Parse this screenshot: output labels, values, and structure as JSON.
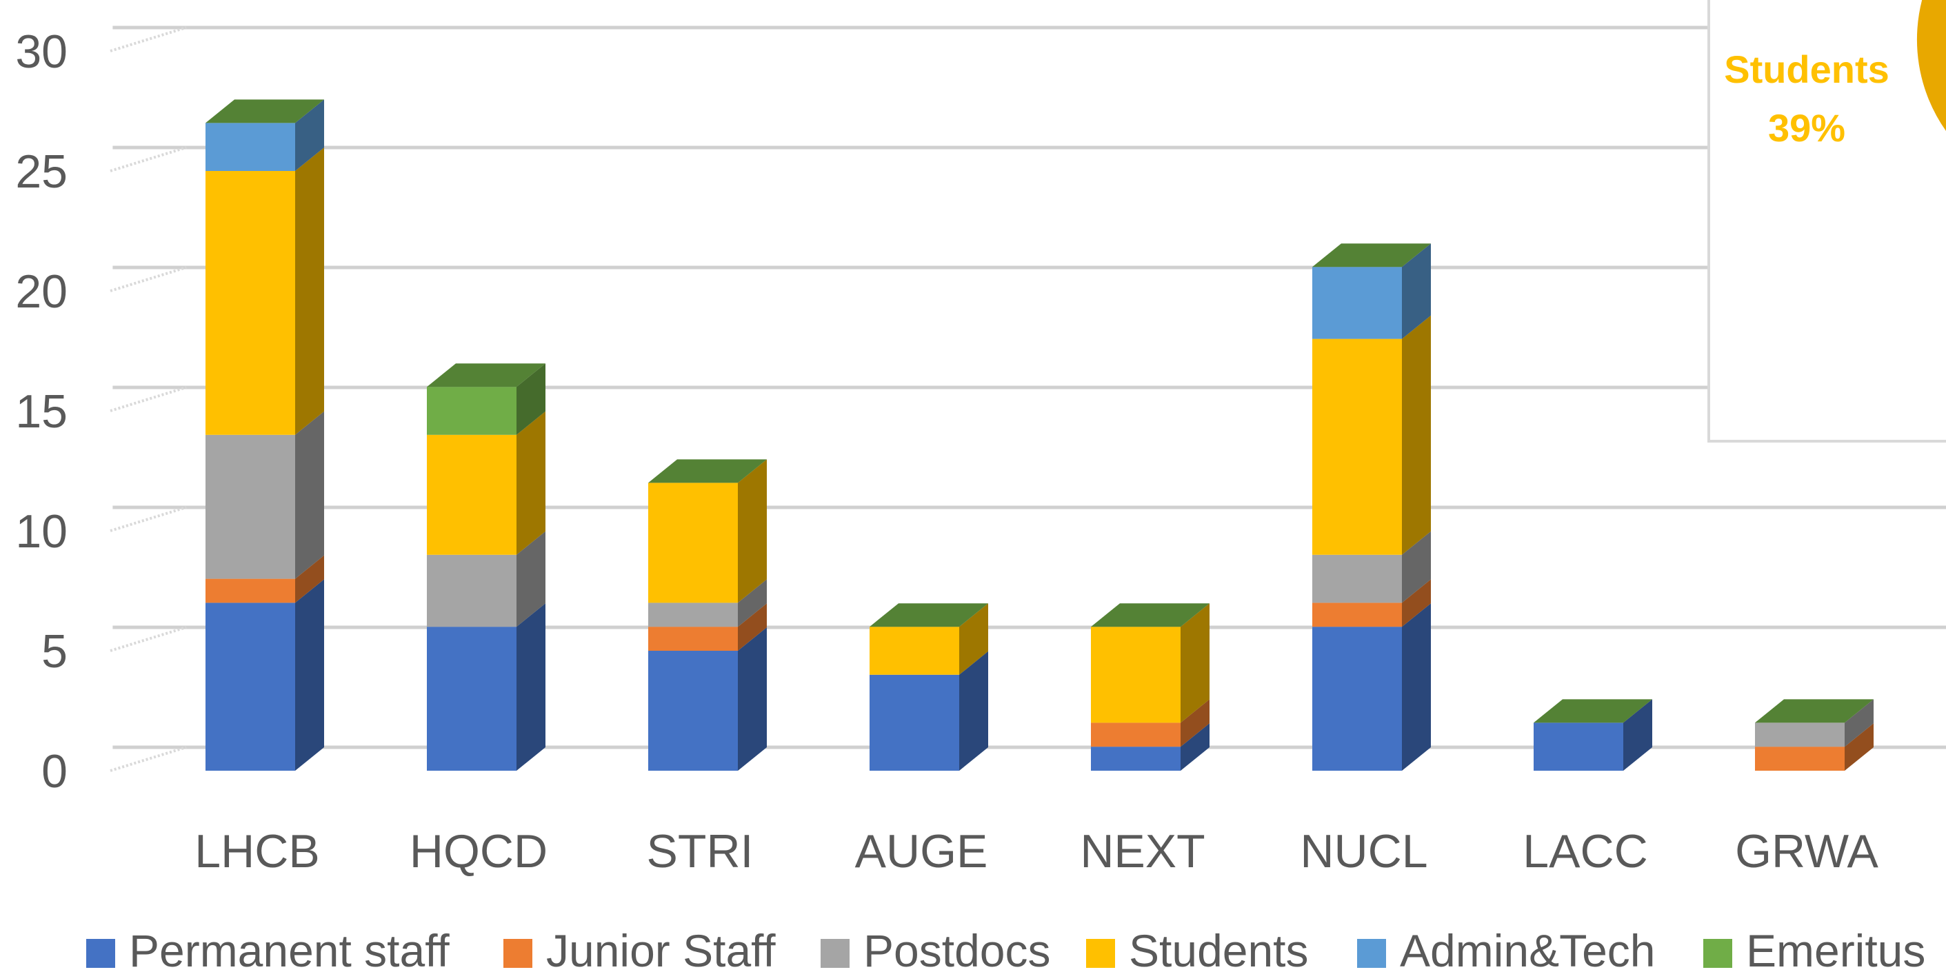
{
  "chart_data": {
    "type": "bar",
    "stacked": true,
    "style": "3d-column",
    "categories": [
      "LHCB",
      "HQCD",
      "STRI",
      "AUGE",
      "NEXT",
      "NUCL",
      "LACC",
      "GRWA"
    ],
    "series": [
      {
        "name": "Permanent staff",
        "color": "#4472C4",
        "values": [
          7,
          6,
          5,
          4,
          1,
          6,
          2,
          0
        ]
      },
      {
        "name": "Junior Staff",
        "color": "#ED7D31",
        "values": [
          1,
          0,
          1,
          0,
          1,
          1,
          0,
          1
        ]
      },
      {
        "name": "Postdocs",
        "color": "#A5A5A5",
        "values": [
          6,
          3,
          1,
          0,
          0,
          2,
          0,
          1
        ]
      },
      {
        "name": "Students",
        "color": "#FFC000",
        "values": [
          11,
          5,
          5,
          2,
          4,
          9,
          0,
          0
        ]
      },
      {
        "name": "Admin&Tech",
        "color": "#5B9BD5",
        "values": [
          2,
          0,
          0,
          0,
          0,
          3,
          0,
          0
        ]
      },
      {
        "name": "Emeritus",
        "color": "#70AD47",
        "values": [
          0,
          2,
          0,
          0,
          0,
          0,
          0,
          0
        ]
      }
    ],
    "yticks": [
      "0",
      "5",
      "10",
      "15",
      "20",
      "25",
      "30"
    ],
    "ylim": [
      0,
      30
    ],
    "grid": true,
    "legend": "bottom",
    "title": "",
    "xlabel": "",
    "ylabel": ""
  },
  "inset": {
    "label": "Students",
    "percent": "39%",
    "color": "#FFC000"
  }
}
